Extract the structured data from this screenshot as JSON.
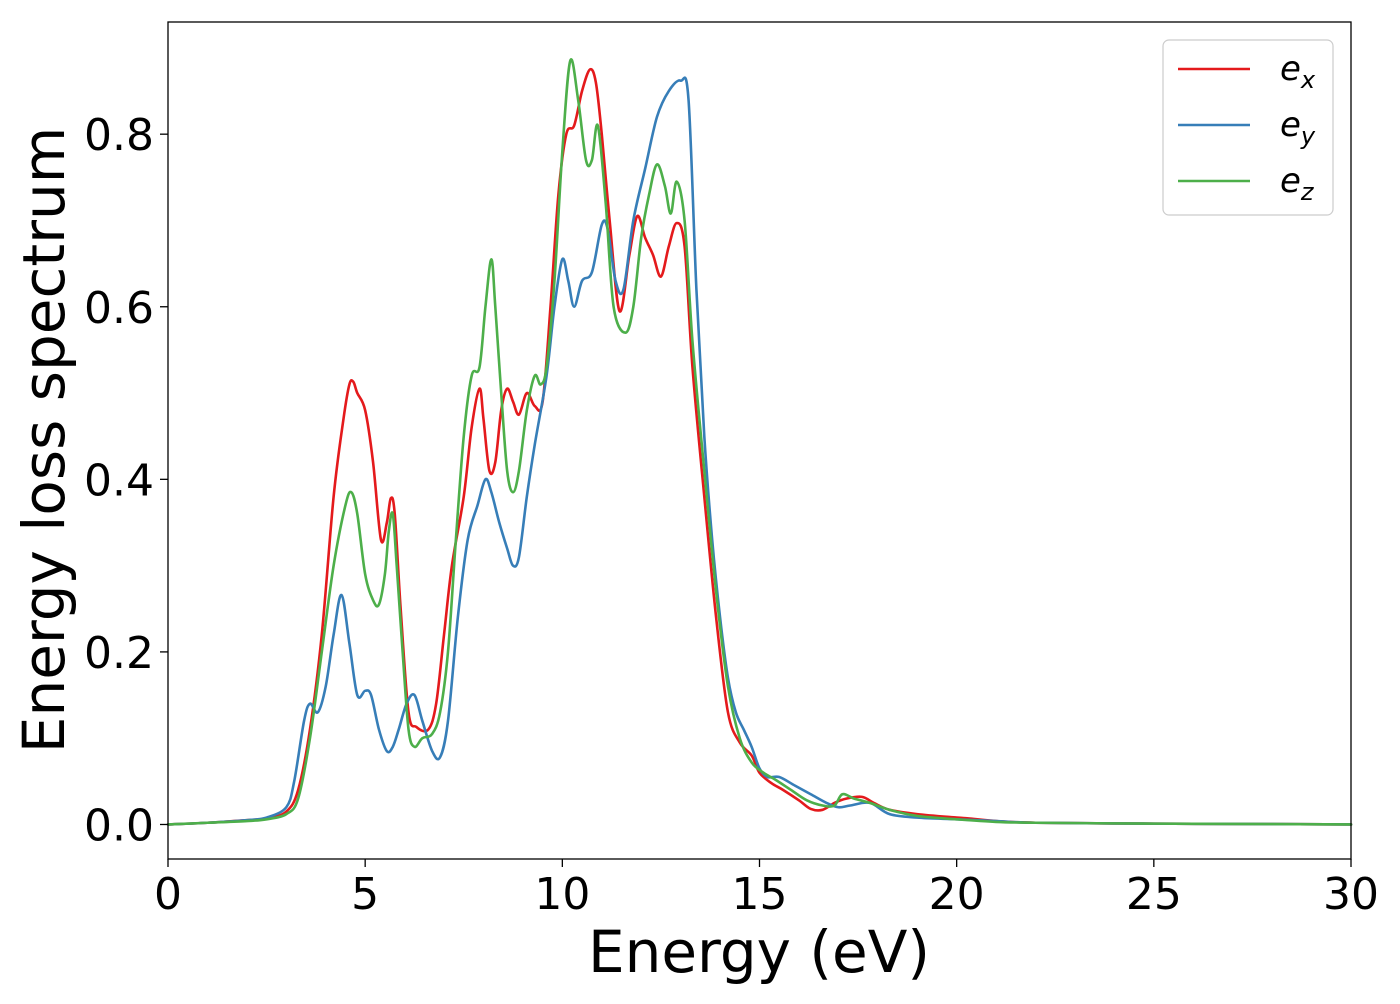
{
  "chart_data": {
    "type": "line",
    "title": "",
    "xlabel": "Energy (eV)",
    "ylabel": "Energy loss spectrum",
    "xlim": [
      0,
      30
    ],
    "ylim": [
      -0.04,
      0.93
    ],
    "xticks": [
      0,
      5,
      10,
      15,
      20,
      25,
      30
    ],
    "yticks": [
      0.0,
      0.2,
      0.4,
      0.6,
      0.8
    ],
    "xtick_labels": [
      "0",
      "5",
      "10",
      "15",
      "20",
      "25",
      "30"
    ],
    "ytick_labels": [
      "0.0",
      "0.2",
      "0.4",
      "0.6",
      "0.8"
    ],
    "grid": false,
    "legend_position": "top-right",
    "series": [
      {
        "name": "e_x",
        "legend_base": "e",
        "legend_sub": "x",
        "color": "#e41a1c",
        "x": [
          0,
          1,
          2,
          2.5,
          3,
          3.3,
          3.6,
          3.9,
          4.2,
          4.45,
          4.6,
          4.7,
          4.8,
          5.0,
          5.2,
          5.4,
          5.55,
          5.65,
          5.75,
          5.9,
          6.1,
          6.3,
          6.6,
          6.8,
          7.0,
          7.2,
          7.5,
          7.7,
          7.9,
          8.0,
          8.15,
          8.3,
          8.45,
          8.6,
          8.75,
          8.9,
          9.1,
          9.3,
          9.5,
          9.7,
          9.9,
          10.1,
          10.3,
          10.5,
          10.7,
          10.85,
          11.0,
          11.2,
          11.45,
          11.7,
          11.9,
          12.1,
          12.3,
          12.5,
          12.7,
          12.9,
          13.1,
          13.3,
          13.6,
          13.9,
          14.2,
          14.5,
          14.8,
          15.0,
          15.3,
          15.6,
          16.0,
          16.3,
          16.6,
          16.9,
          17.2,
          17.6,
          17.9,
          18.3,
          19.0,
          20.0,
          20.3,
          21.0,
          22.0,
          25.0,
          28.0,
          30.0
        ],
        "y": [
          0,
          0.002,
          0.005,
          0.007,
          0.015,
          0.04,
          0.11,
          0.22,
          0.38,
          0.47,
          0.51,
          0.513,
          0.5,
          0.48,
          0.42,
          0.33,
          0.35,
          0.378,
          0.36,
          0.25,
          0.13,
          0.113,
          0.11,
          0.14,
          0.22,
          0.3,
          0.38,
          0.46,
          0.505,
          0.47,
          0.41,
          0.42,
          0.48,
          0.505,
          0.49,
          0.475,
          0.5,
          0.485,
          0.49,
          0.6,
          0.73,
          0.8,
          0.81,
          0.85,
          0.875,
          0.86,
          0.8,
          0.7,
          0.595,
          0.66,
          0.705,
          0.68,
          0.66,
          0.635,
          0.67,
          0.697,
          0.67,
          0.53,
          0.38,
          0.24,
          0.13,
          0.095,
          0.08,
          0.06,
          0.048,
          0.04,
          0.028,
          0.018,
          0.017,
          0.025,
          0.03,
          0.032,
          0.025,
          0.017,
          0.012,
          0.008,
          0.007,
          0.004,
          0.002,
          0.001,
          0.0005,
          0
        ]
      },
      {
        "name": "e_y",
        "legend_base": "e",
        "legend_sub": "y",
        "color": "#377eb8",
        "x": [
          0,
          1,
          2,
          2.5,
          3,
          3.2,
          3.45,
          3.6,
          3.8,
          4.0,
          4.2,
          4.4,
          4.6,
          4.8,
          5.0,
          5.15,
          5.35,
          5.55,
          5.7,
          5.85,
          6.05,
          6.25,
          6.45,
          6.7,
          6.9,
          7.1,
          7.35,
          7.6,
          7.85,
          8.05,
          8.2,
          8.4,
          8.6,
          8.75,
          8.9,
          9.1,
          9.3,
          9.6,
          9.8,
          10.0,
          10.15,
          10.3,
          10.5,
          10.75,
          11.0,
          11.15,
          11.35,
          11.55,
          11.8,
          12.1,
          12.4,
          12.7,
          13.0,
          13.2,
          13.4,
          13.6,
          13.8,
          14.0,
          14.2,
          14.4,
          14.6,
          14.8,
          15.0,
          15.2,
          15.5,
          15.9,
          16.3,
          16.7,
          17.0,
          17.3,
          17.8,
          18.3,
          19.0,
          20.0,
          21.0,
          22.0,
          25.0,
          28.0,
          30.0
        ],
        "y": [
          0,
          0.002,
          0.005,
          0.008,
          0.02,
          0.05,
          0.12,
          0.14,
          0.13,
          0.16,
          0.22,
          0.266,
          0.21,
          0.15,
          0.155,
          0.15,
          0.11,
          0.085,
          0.09,
          0.11,
          0.14,
          0.15,
          0.12,
          0.085,
          0.078,
          0.12,
          0.24,
          0.33,
          0.37,
          0.4,
          0.385,
          0.35,
          0.32,
          0.3,
          0.31,
          0.38,
          0.44,
          0.52,
          0.6,
          0.655,
          0.63,
          0.6,
          0.63,
          0.64,
          0.695,
          0.69,
          0.63,
          0.62,
          0.7,
          0.76,
          0.82,
          0.85,
          0.862,
          0.84,
          0.62,
          0.45,
          0.33,
          0.24,
          0.17,
          0.13,
          0.11,
          0.09,
          0.065,
          0.055,
          0.055,
          0.045,
          0.035,
          0.025,
          0.02,
          0.022,
          0.025,
          0.012,
          0.008,
          0.006,
          0.004,
          0.002,
          0.001,
          0.0005,
          0
        ]
      },
      {
        "name": "e_z",
        "legend_base": "e",
        "legend_sub": "z",
        "color": "#4daf4a",
        "x": [
          0,
          1,
          2,
          2.5,
          3,
          3.3,
          3.6,
          3.9,
          4.2,
          4.5,
          4.65,
          4.8,
          5.0,
          5.2,
          5.35,
          5.5,
          5.6,
          5.7,
          5.8,
          5.95,
          6.1,
          6.25,
          6.45,
          6.7,
          6.9,
          7.1,
          7.3,
          7.5,
          7.7,
          7.9,
          8.05,
          8.2,
          8.3,
          8.45,
          8.6,
          8.75,
          8.9,
          9.1,
          9.3,
          9.45,
          9.6,
          9.8,
          10.0,
          10.2,
          10.4,
          10.6,
          10.75,
          10.9,
          11.1,
          11.3,
          11.6,
          11.8,
          12.0,
          12.2,
          12.4,
          12.6,
          12.75,
          12.9,
          13.1,
          13.3,
          13.6,
          13.9,
          14.2,
          14.5,
          14.8,
          15.1,
          15.4,
          15.8,
          16.2,
          16.6,
          16.9,
          17.1,
          17.4,
          17.8,
          18.3,
          19.0,
          20.0,
          21.0,
          22.0,
          25.0,
          28.0,
          30.0
        ],
        "y": [
          0,
          0.002,
          0.004,
          0.006,
          0.012,
          0.03,
          0.1,
          0.2,
          0.3,
          0.37,
          0.385,
          0.36,
          0.29,
          0.26,
          0.255,
          0.29,
          0.34,
          0.36,
          0.3,
          0.2,
          0.11,
          0.09,
          0.1,
          0.105,
          0.13,
          0.2,
          0.33,
          0.45,
          0.52,
          0.53,
          0.6,
          0.655,
          0.6,
          0.5,
          0.41,
          0.385,
          0.41,
          0.48,
          0.52,
          0.51,
          0.53,
          0.63,
          0.78,
          0.885,
          0.84,
          0.77,
          0.77,
          0.81,
          0.72,
          0.6,
          0.57,
          0.6,
          0.68,
          0.73,
          0.765,
          0.74,
          0.708,
          0.745,
          0.7,
          0.56,
          0.41,
          0.27,
          0.16,
          0.1,
          0.072,
          0.06,
          0.052,
          0.04,
          0.028,
          0.022,
          0.022,
          0.035,
          0.03,
          0.025,
          0.017,
          0.01,
          0.006,
          0.003,
          0.002,
          0.001,
          0.0005,
          0
        ]
      }
    ]
  }
}
